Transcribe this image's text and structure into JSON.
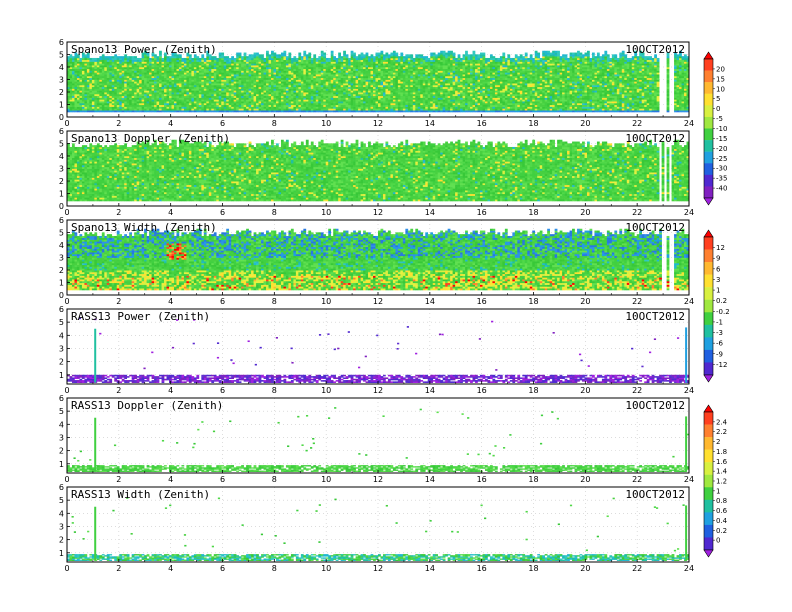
{
  "chart_data": [
    {
      "type": "heatmap",
      "title": "Spano13 Power (Zenith)",
      "date_label": "10OCT2012",
      "x_range": [
        0,
        24
      ],
      "y_range": [
        0,
        6
      ],
      "x_ticks": [
        "0",
        "2",
        "4",
        "6",
        "8",
        "10",
        "12",
        "14",
        "16",
        "18",
        "20",
        "22",
        "24"
      ],
      "y_ticks": [
        "0",
        "1",
        "2",
        "3",
        "4",
        "5",
        "6"
      ],
      "colorbar_group": "A",
      "data_height_km": [
        0.4,
        5.3
      ],
      "dominant_band": "green"
    },
    {
      "type": "heatmap",
      "title": "Spano13 Doppler (Zenith)",
      "date_label": "10OCT2012",
      "x_range": [
        0,
        24
      ],
      "y_range": [
        0,
        6
      ],
      "x_ticks": [
        "0",
        "2",
        "4",
        "6",
        "8",
        "10",
        "12",
        "14",
        "16",
        "18",
        "20",
        "22",
        "24"
      ],
      "y_ticks": [
        "0",
        "1",
        "2",
        "3",
        "4",
        "5",
        "6"
      ],
      "colorbar_group": "A",
      "data_height_km": [
        0.4,
        5.3
      ],
      "dominant_band": "green"
    },
    {
      "type": "heatmap",
      "title": "Spano13 Width (Zenith)",
      "date_label": "10OCT2012",
      "x_range": [
        0,
        24
      ],
      "y_range": [
        0,
        6
      ],
      "x_ticks": [
        "0",
        "2",
        "4",
        "6",
        "8",
        "10",
        "12",
        "14",
        "16",
        "18",
        "20",
        "22",
        "24"
      ],
      "y_ticks": [
        "0",
        "1",
        "2",
        "3",
        "4",
        "5",
        "6"
      ],
      "colorbar_group": "B",
      "data_height_km": [
        0.4,
        5.3
      ],
      "dominant_band": "green-yellow"
    },
    {
      "type": "heatmap",
      "title": "RASS13 Power (Zenith)",
      "date_label": "10OCT2012",
      "x_range": [
        0,
        24
      ],
      "y_range": [
        0.3,
        6
      ],
      "x_ticks": [
        "0",
        "2",
        "4",
        "6",
        "8",
        "10",
        "12",
        "14",
        "16",
        "18",
        "20",
        "22",
        "24"
      ],
      "y_ticks": [
        "1",
        "2",
        "3",
        "4",
        "5",
        "6"
      ],
      "colorbar_group": "B",
      "data_height_km": [
        0.4,
        1.0
      ],
      "dominant_band": "purple"
    },
    {
      "type": "heatmap",
      "title": "RASS13 Doppler (Zenith)",
      "date_label": "10OCT2012",
      "x_range": [
        0,
        24
      ],
      "y_range": [
        0.3,
        6
      ],
      "x_ticks": [
        "0",
        "2",
        "4",
        "6",
        "8",
        "10",
        "12",
        "14",
        "16",
        "18",
        "20",
        "22",
        "24"
      ],
      "y_ticks": [
        "1",
        "2",
        "3",
        "4",
        "5",
        "6"
      ],
      "colorbar_group": "C",
      "data_height_km": [
        0.4,
        0.9
      ],
      "dominant_band": "green"
    },
    {
      "type": "heatmap",
      "title": "RASS13 Width (Zenith)",
      "date_label": "10OCT2012",
      "x_range": [
        0,
        24
      ],
      "y_range": [
        0.3,
        6
      ],
      "x_ticks": [
        "0",
        "2",
        "4",
        "6",
        "8",
        "10",
        "12",
        "14",
        "16",
        "18",
        "20",
        "22",
        "24"
      ],
      "y_ticks": [
        "1",
        "2",
        "3",
        "4",
        "5",
        "6"
      ],
      "colorbar_group": "C",
      "data_height_km": [
        0.4,
        0.9
      ],
      "dominant_band": "green-cyan"
    }
  ],
  "colorbars": [
    {
      "id": "A",
      "labels": [
        "20",
        "15",
        "10",
        "5",
        "0",
        "-5",
        "-10",
        "-15",
        "-20",
        "-25",
        "-30",
        "-35",
        "-40"
      ],
      "colors": [
        "#ff0000",
        "#ff4020",
        "#ff8030",
        "#ffb830",
        "#ffe030",
        "#d8f040",
        "#a0e840",
        "#40d040",
        "#20c0a0",
        "#20a0e0",
        "#2060e0",
        "#5028d0",
        "#8020c0",
        "#a020e0"
      ]
    },
    {
      "id": "B",
      "labels": [
        "12",
        "9",
        "6",
        "3",
        "1",
        "0.2",
        "-0.2",
        "-1",
        "-3",
        "-6",
        "-9",
        "-12"
      ],
      "colors": [
        "#ff0000",
        "#ff4020",
        "#ff8030",
        "#ffb830",
        "#ffe030",
        "#d8f040",
        "#a0e840",
        "#40d040",
        "#20c0a0",
        "#20a0e0",
        "#2060e0",
        "#5028d0",
        "#a020e0"
      ]
    },
    {
      "id": "C",
      "labels": [
        "2.4",
        "2.2",
        "2",
        "1.8",
        "1.6",
        "1.4",
        "1.2",
        "1",
        "0.8",
        "0.6",
        "0.4",
        "0.2",
        "0"
      ],
      "colors": [
        "#ff0000",
        "#ff4020",
        "#ff8030",
        "#ffb830",
        "#ffe030",
        "#d8f040",
        "#a0e840",
        "#40d040",
        "#20c0a0",
        "#20a0e0",
        "#2060e0",
        "#5028d0",
        "#a020e0"
      ]
    }
  ]
}
